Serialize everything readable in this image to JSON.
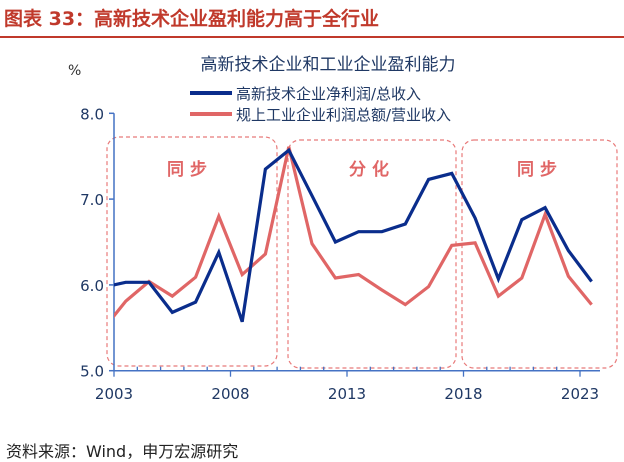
{
  "figure_title": "图表 33：高新技术企业盈利能力高于全行业",
  "source": "资料来源：Wind，申万宏源研究",
  "chart_data": {
    "type": "line",
    "title": "高新技术企业和工业企业盈利能力",
    "ylabel": "%",
    "xlabel": "",
    "ylim": [
      5.0,
      8.0
    ],
    "yticks": [
      "5.0",
      "6.0",
      "7.0",
      "8.0"
    ],
    "xticks": [
      "2003",
      "2008",
      "2013",
      "2018",
      "2023"
    ],
    "legend_position": "top",
    "grid": false,
    "x": [
      2002,
      2003,
      2004,
      2005,
      2006,
      2007,
      2008,
      2009,
      2010,
      2011,
      2012,
      2013,
      2014,
      2015,
      2016,
      2017,
      2018,
      2019,
      2020,
      2021,
      2022,
      2023
    ],
    "series": [
      {
        "name": "高新技术企业净利润/总收入",
        "color": "#0a2d8c",
        "values": [
          5.97,
          6.03,
          6.03,
          5.68,
          5.8,
          6.38,
          5.57,
          7.35,
          7.57,
          7.04,
          6.5,
          6.62,
          6.62,
          6.71,
          7.23,
          7.3,
          6.78,
          6.07,
          6.76,
          6.9,
          6.4,
          6.04
        ]
      },
      {
        "name": "规上工业企业利润总额/营业收入",
        "color": "#e06666",
        "values": [
          5.47,
          5.81,
          6.04,
          5.87,
          6.09,
          6.8,
          6.12,
          6.36,
          7.61,
          6.48,
          6.08,
          6.12,
          5.94,
          5.77,
          5.98,
          6.46,
          6.49,
          5.87,
          6.08,
          6.82,
          6.1,
          5.77
        ]
      }
    ],
    "annotations": [
      "同步",
      "分化",
      "同步"
    ]
  }
}
